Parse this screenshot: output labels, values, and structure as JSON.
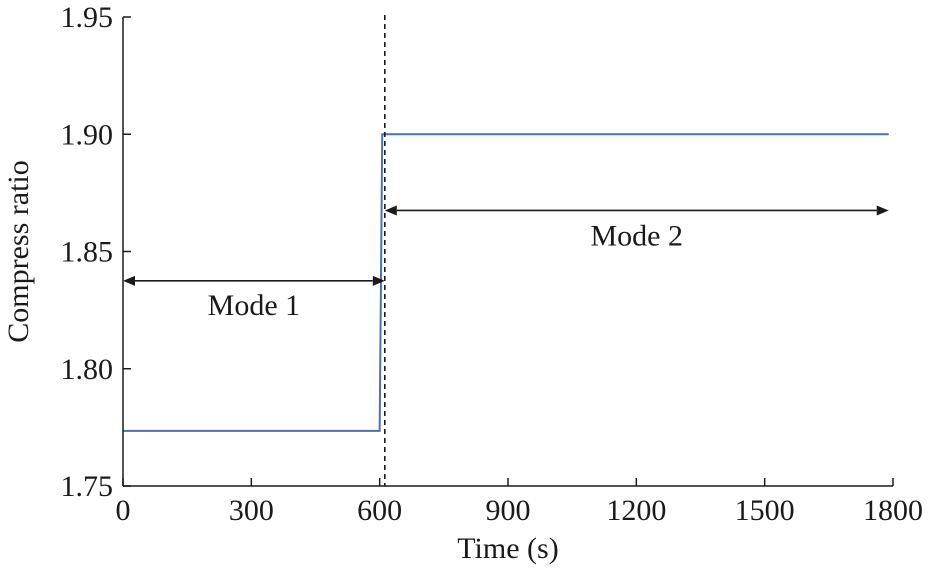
{
  "chart_data": {
    "type": "line",
    "title": "",
    "xlabel": "Time (s)",
    "ylabel": "Compress ratio",
    "xlim": [
      0,
      1800
    ],
    "ylim": [
      1.75,
      1.95
    ],
    "xticks": [
      0,
      300,
      600,
      900,
      1200,
      1500,
      1800
    ],
    "xtick_labels": [
      "0",
      "300",
      "600",
      "900",
      "1200",
      "1500",
      "1800"
    ],
    "yticks": [
      1.75,
      1.8,
      1.85,
      1.9,
      1.95
    ],
    "ytick_labels": [
      "1.75",
      "1.80",
      "1.85",
      "1.90",
      "1.95"
    ],
    "grid": false,
    "series": [
      {
        "color": "#4a72b0",
        "x": [
          0,
          600,
          606,
          1790
        ],
        "y": [
          1.7735,
          1.7735,
          1.9,
          1.9
        ]
      }
    ],
    "annotations": {
      "divider_x": 612,
      "mode1": {
        "label": "Mode 1",
        "x_start": 0,
        "x_end": 612,
        "y": 1.8375
      },
      "mode2": {
        "label": "Mode 2",
        "x_start": 612,
        "x_end": 1790,
        "y": 1.8675
      }
    }
  }
}
